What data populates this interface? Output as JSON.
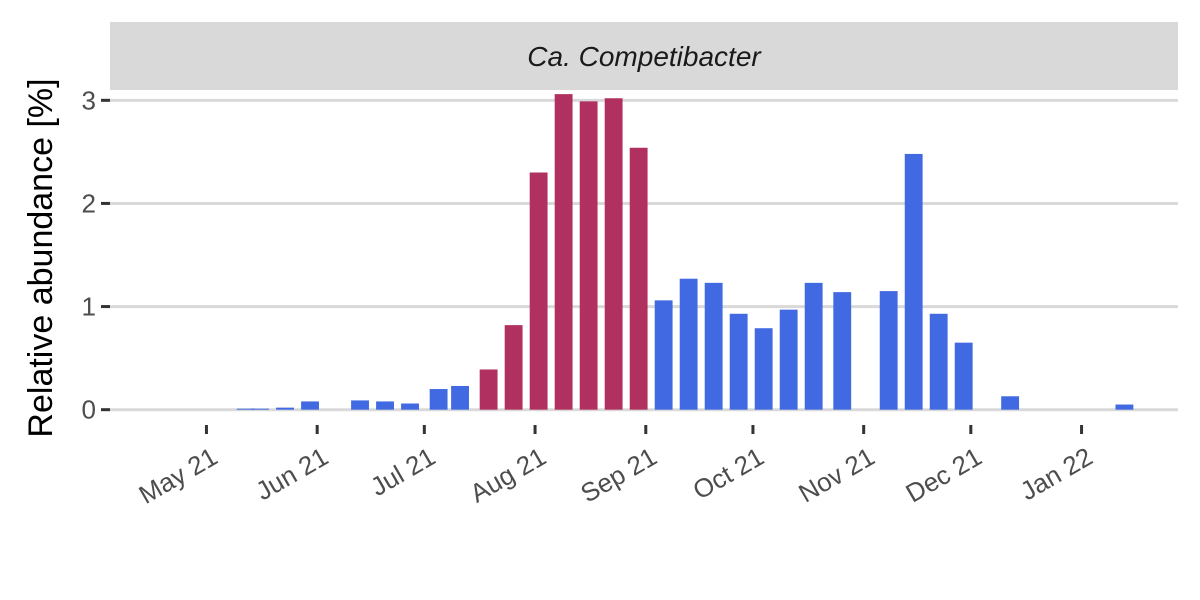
{
  "chart_data": {
    "type": "bar",
    "panel_title": "Ca. Competibacter",
    "xlabel": "",
    "ylabel": "Relative abundance [%]",
    "ylim": [
      -0.1,
      3.1
    ],
    "x_range": [
      "2021-04-04",
      "2022-01-28"
    ],
    "y_ticks": [
      0,
      1,
      2,
      3
    ],
    "x_ticks": [
      {
        "date": "2021-05-01",
        "label": "May 21"
      },
      {
        "date": "2021-06-01",
        "label": "Jun 21"
      },
      {
        "date": "2021-07-01",
        "label": "Jul 21"
      },
      {
        "date": "2021-08-01",
        "label": "Aug 21"
      },
      {
        "date": "2021-09-01",
        "label": "Sep 21"
      },
      {
        "date": "2021-10-01",
        "label": "Oct 21"
      },
      {
        "date": "2021-11-01",
        "label": "Nov 21"
      },
      {
        "date": "2021-12-01",
        "label": "Dec 21"
      },
      {
        "date": "2022-01-01",
        "label": "Jan 22"
      }
    ],
    "colors": {
      "blue": "#4169e1",
      "crimson": "#b03060",
      "strip": "#d9d9d9",
      "grid": "#d9d9d9"
    },
    "grid": true,
    "legend": "none",
    "bars": [
      {
        "date": "2021-05-12",
        "value": 0.01,
        "color": "blue"
      },
      {
        "date": "2021-05-16",
        "value": 0.01,
        "color": "blue"
      },
      {
        "date": "2021-05-23",
        "value": 0.02,
        "color": "blue"
      },
      {
        "date": "2021-05-30",
        "value": 0.08,
        "color": "blue"
      },
      {
        "date": "2021-06-13",
        "value": 0.09,
        "color": "blue"
      },
      {
        "date": "2021-06-20",
        "value": 0.08,
        "color": "blue"
      },
      {
        "date": "2021-06-27",
        "value": 0.06,
        "color": "blue"
      },
      {
        "date": "2021-07-05",
        "value": 0.2,
        "color": "blue"
      },
      {
        "date": "2021-07-11",
        "value": 0.23,
        "color": "blue"
      },
      {
        "date": "2021-07-19",
        "value": 0.39,
        "color": "crimson"
      },
      {
        "date": "2021-07-26",
        "value": 0.82,
        "color": "crimson"
      },
      {
        "date": "2021-08-02",
        "value": 2.3,
        "color": "crimson"
      },
      {
        "date": "2021-08-09",
        "value": 3.06,
        "color": "crimson"
      },
      {
        "date": "2021-08-16",
        "value": 2.99,
        "color": "crimson"
      },
      {
        "date": "2021-08-23",
        "value": 3.02,
        "color": "crimson"
      },
      {
        "date": "2021-08-30",
        "value": 2.54,
        "color": "crimson"
      },
      {
        "date": "2021-09-06",
        "value": 1.06,
        "color": "blue"
      },
      {
        "date": "2021-09-13",
        "value": 1.27,
        "color": "blue"
      },
      {
        "date": "2021-09-20",
        "value": 1.23,
        "color": "blue"
      },
      {
        "date": "2021-09-27",
        "value": 0.93,
        "color": "blue"
      },
      {
        "date": "2021-10-04",
        "value": 0.79,
        "color": "blue"
      },
      {
        "date": "2021-10-11",
        "value": 0.97,
        "color": "blue"
      },
      {
        "date": "2021-10-18",
        "value": 1.23,
        "color": "blue"
      },
      {
        "date": "2021-10-26",
        "value": 1.14,
        "color": "blue"
      },
      {
        "date": "2021-11-08",
        "value": 1.15,
        "color": "blue"
      },
      {
        "date": "2021-11-15",
        "value": 2.48,
        "color": "blue"
      },
      {
        "date": "2021-11-22",
        "value": 0.93,
        "color": "blue"
      },
      {
        "date": "2021-11-29",
        "value": 0.65,
        "color": "blue"
      },
      {
        "date": "2021-12-12",
        "value": 0.13,
        "color": "blue"
      },
      {
        "date": "2022-01-13",
        "value": 0.05,
        "color": "blue"
      }
    ]
  }
}
